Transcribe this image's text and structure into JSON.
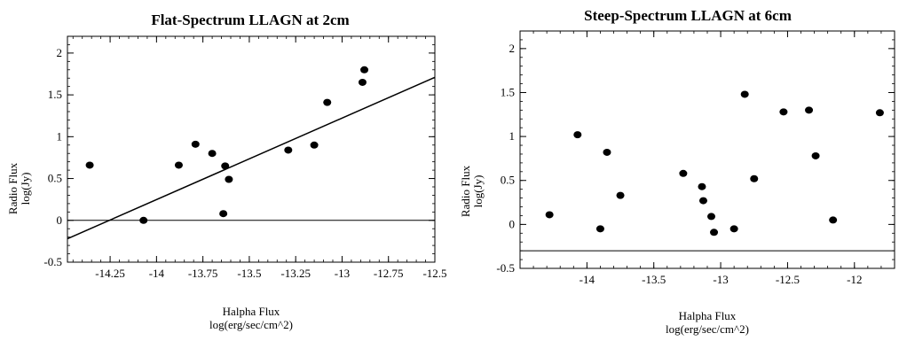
{
  "chart_data": [
    {
      "type": "scatter",
      "title": "Flat-Spectrum LLAGN at 2cm",
      "xlabel_line1": "Halpha Flux",
      "xlabel_line2": "log(erg/sec/cm^2)",
      "ylabel_line1": "Radio Flux",
      "ylabel_line2": "log(Jy)",
      "xlim": [
        -14.48,
        -12.5
      ],
      "ylim": [
        -0.5,
        2.2
      ],
      "xticks": [
        -14.25,
        -14,
        -13.75,
        -13.5,
        -13.25,
        -13,
        -12.75,
        -12.5
      ],
      "xtick_labels": [
        "-14.25",
        "-14",
        "-13.75",
        "-13.5",
        "-13.25",
        "-13",
        "-12.75",
        "-12.5"
      ],
      "yticks": [
        -0.5,
        0,
        0.5,
        1,
        1.5,
        2
      ],
      "ytick_labels": [
        "-0.5",
        "0",
        "0.5",
        "1",
        "1.5",
        "2"
      ],
      "points": [
        {
          "x": -14.36,
          "y": 0.66
        },
        {
          "x": -14.07,
          "y": 0.0
        },
        {
          "x": -13.88,
          "y": 0.66
        },
        {
          "x": -13.79,
          "y": 0.91
        },
        {
          "x": -13.7,
          "y": 0.8
        },
        {
          "x": -13.64,
          "y": 0.08
        },
        {
          "x": -13.63,
          "y": 0.65
        },
        {
          "x": -13.61,
          "y": 0.49
        },
        {
          "x": -13.29,
          "y": 0.84
        },
        {
          "x": -13.15,
          "y": 0.9
        },
        {
          "x": -13.08,
          "y": 1.41
        },
        {
          "x": -12.89,
          "y": 1.65
        },
        {
          "x": -12.88,
          "y": 1.8
        }
      ],
      "fit_line": {
        "x": [
          -14.48,
          -12.5
        ],
        "y": [
          -0.22,
          1.71
        ]
      },
      "hline_y": 0
    },
    {
      "type": "scatter",
      "title": "Steep-Spectrum LLAGN at 6cm",
      "xlabel_line1": "Halpha Flux",
      "xlabel_line2": "log(erg/sec/cm^2)",
      "ylabel_line1": "Radio Flux",
      "ylabel_line2": "log(Jy)",
      "xlim": [
        -14.5,
        -11.7
      ],
      "ylim": [
        -0.5,
        2.2
      ],
      "xticks": [
        -14,
        -13.5,
        -13,
        -12.5,
        -12
      ],
      "xtick_labels": [
        "-14",
        "-13.5",
        "-13",
        "-12.5",
        "-12"
      ],
      "yticks": [
        -0.5,
        0,
        0.5,
        1,
        1.5,
        2
      ],
      "ytick_labels": [
        "-0.5",
        "0",
        "0.5",
        "1",
        "1.5",
        "2"
      ],
      "points": [
        {
          "x": -14.28,
          "y": 0.11
        },
        {
          "x": -14.07,
          "y": 1.02
        },
        {
          "x": -13.9,
          "y": -0.05
        },
        {
          "x": -13.85,
          "y": 0.82
        },
        {
          "x": -13.75,
          "y": 0.33
        },
        {
          "x": -13.28,
          "y": 0.58
        },
        {
          "x": -13.14,
          "y": 0.43
        },
        {
          "x": -13.13,
          "y": 0.27
        },
        {
          "x": -13.07,
          "y": 0.09
        },
        {
          "x": -13.05,
          "y": -0.09
        },
        {
          "x": -12.9,
          "y": -0.05
        },
        {
          "x": -12.82,
          "y": 1.48
        },
        {
          "x": -12.75,
          "y": 0.52
        },
        {
          "x": -12.53,
          "y": 1.28
        },
        {
          "x": -12.34,
          "y": 1.3
        },
        {
          "x": -12.29,
          "y": 0.78
        },
        {
          "x": -12.16,
          "y": 0.05
        },
        {
          "x": -11.81,
          "y": 1.27
        }
      ],
      "hline_y": -0.3
    }
  ]
}
